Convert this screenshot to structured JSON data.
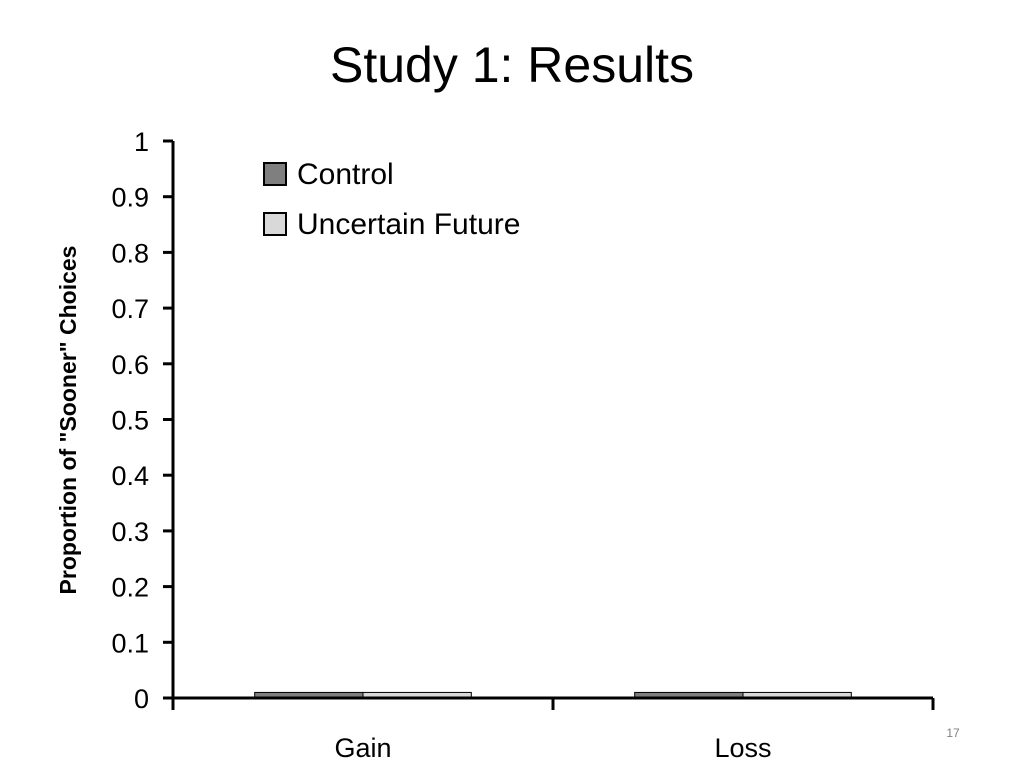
{
  "slide": {
    "title": "Study 1: Results",
    "page_number": "17"
  },
  "chart_data": {
    "type": "bar",
    "title": "",
    "xlabel": "",
    "ylabel": "Proportion of \"Sooner\" Choices",
    "categories": [
      "Gain",
      "Loss"
    ],
    "series": [
      {
        "name": "Control",
        "values": [
          0.01,
          0.01
        ],
        "color": "#7f7f7f"
      },
      {
        "name": "Uncertain Future",
        "values": [
          0.01,
          0.01
        ],
        "color": "#d9d9d9"
      }
    ],
    "ylim": [
      0,
      1
    ],
    "yticks": [
      "0",
      "0.1",
      "0.2",
      "0.3",
      "0.4",
      "0.5",
      "0.6",
      "0.7",
      "0.8",
      "0.9",
      "1"
    ],
    "legend_placement": "top-left",
    "grid": false
  }
}
